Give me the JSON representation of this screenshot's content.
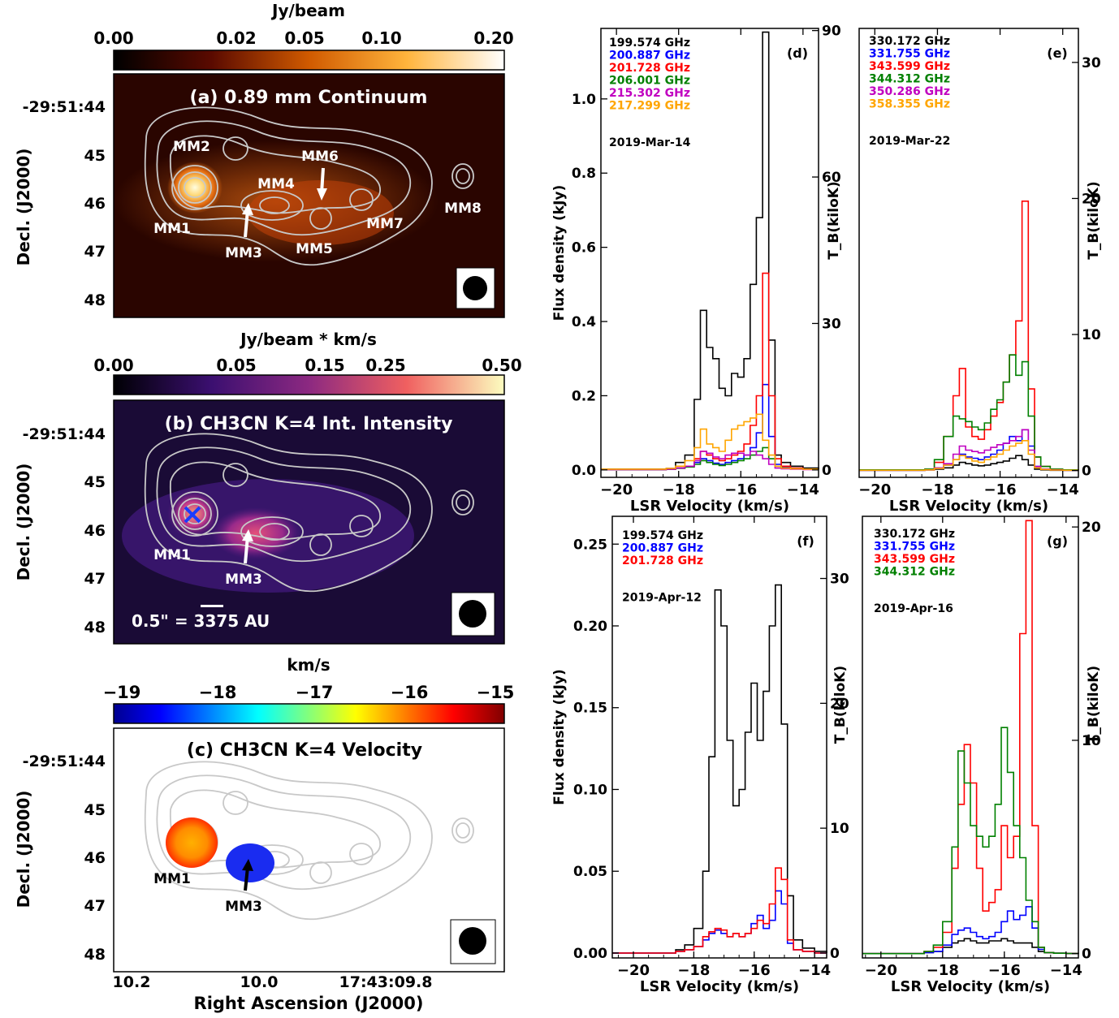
{
  "maps": [
    {
      "id": "a",
      "title": "(a) 0.89 mm Continuum",
      "colorbar": {
        "label": "Jy/beam",
        "ticks": [
          "0.00",
          "0.02",
          "0.05",
          "0.10",
          "0.20"
        ],
        "colormap": "afmhot"
      },
      "labels": [
        "MM1",
        "MM2",
        "MM3",
        "MM4",
        "MM5",
        "MM6",
        "MM7",
        "MM8"
      ],
      "ylabel": "Decl. (J2000)",
      "yticks": [
        "-29:51:44",
        "45",
        "46",
        "47",
        "48"
      ]
    },
    {
      "id": "b",
      "title": "(b) CH3CN K=4 Int. Intensity",
      "colorbar": {
        "label": "Jy/beam * km/s",
        "ticks": [
          "0.00",
          "0.05",
          "0.15",
          "0.25",
          "0.50"
        ],
        "colormap": "magma"
      },
      "labels": [
        "MM1",
        "MM3"
      ],
      "scalebar": "0.5\" = 3375 AU",
      "ylabel": "Decl. (J2000)",
      "yticks": [
        "-29:51:44",
        "45",
        "46",
        "47",
        "48"
      ]
    },
    {
      "id": "c",
      "title": "(c) CH3CN K=4 Velocity",
      "colorbar": {
        "label": "km/s",
        "ticks": [
          "−19",
          "−18",
          "−17",
          "−16",
          "−15"
        ],
        "colormap": "jet"
      },
      "labels": [
        "MM1",
        "MM3"
      ],
      "ylabel": "Decl. (J2000)",
      "yticks": [
        "-29:51:44",
        "45",
        "46",
        "47",
        "48"
      ],
      "xlabel": "Right Ascension (J2000)",
      "xticks": [
        "10.2",
        "10.0",
        "17:43:09.8"
      ]
    }
  ],
  "chart_data": [
    {
      "id": "d",
      "type": "line",
      "panel_label": "(d)",
      "date": "2019-Mar-14",
      "xlabel": "LSR Velocity (km/s)",
      "ylabel": "Flux density (kJy)",
      "y2label": "T_B(kiloK)",
      "xlim": [
        -20.5,
        -13.5
      ],
      "ylim": [
        -0.02,
        1.19
      ],
      "xticks": [
        -20,
        -18,
        -16,
        -14
      ],
      "yticks": [
        0.0,
        0.2,
        0.4,
        0.6,
        0.8,
        1.0
      ],
      "ytick_labels": [
        "0.0",
        "0.2",
        "0.4",
        "0.6",
        "0.8",
        "1.0"
      ],
      "y2ticks": [
        0,
        30,
        60,
        90
      ],
      "y2_per_y": 76,
      "x": [
        -20.5,
        -18.4,
        -18.1,
        -17.8,
        -17.5,
        -17.3,
        -17.1,
        -16.9,
        -16.7,
        -16.5,
        -16.3,
        -16.1,
        -15.9,
        -15.7,
        -15.5,
        -15.3,
        -15.1,
        -14.9,
        -14.7,
        -14.4,
        -14.0,
        -13.5
      ],
      "series": [
        {
          "name": "199.574 GHz",
          "color": "#000000",
          "values": [
            0.002,
            0.004,
            0.02,
            0.04,
            0.19,
            0.43,
            0.33,
            0.3,
            0.22,
            0.2,
            0.26,
            0.25,
            0.3,
            0.5,
            0.68,
            1.18,
            0.35,
            0.04,
            0.02,
            0.01,
            0.005,
            0.002
          ]
        },
        {
          "name": "200.887 GHz",
          "color": "#0000ff",
          "values": [
            0.001,
            0.002,
            0.005,
            0.01,
            0.02,
            0.03,
            0.025,
            0.018,
            0.015,
            0.02,
            0.025,
            0.03,
            0.04,
            0.06,
            0.1,
            0.23,
            0.09,
            0.015,
            0.008,
            0.004,
            0.002,
            0.001
          ]
        },
        {
          "name": "201.728 GHz",
          "color": "#ff0000",
          "values": [
            0.001,
            0.002,
            0.005,
            0.01,
            0.03,
            0.05,
            0.04,
            0.03,
            0.025,
            0.03,
            0.04,
            0.05,
            0.07,
            0.12,
            0.2,
            0.53,
            0.2,
            0.03,
            0.01,
            0.005,
            0.002,
            0.001
          ]
        },
        {
          "name": "206.001 GHz",
          "color": "#008000",
          "values": [
            0.001,
            0.002,
            0.004,
            0.008,
            0.015,
            0.025,
            0.02,
            0.015,
            0.012,
            0.015,
            0.02,
            0.025,
            0.03,
            0.04,
            0.05,
            0.06,
            0.03,
            0.01,
            0.005,
            0.003,
            0.002,
            0.001
          ]
        },
        {
          "name": "215.302 GHz",
          "color": "#c000c0",
          "values": [
            0.001,
            0.002,
            0.005,
            0.01,
            0.025,
            0.05,
            0.045,
            0.035,
            0.03,
            0.04,
            0.045,
            0.045,
            0.04,
            0.05,
            0.04,
            0.03,
            0.015,
            0.005,
            0.003,
            0.002,
            0.001,
            0.001
          ]
        },
        {
          "name": "217.299 GHz",
          "color": "#ffa500",
          "values": [
            0.002,
            0.004,
            0.01,
            0.025,
            0.06,
            0.11,
            0.07,
            0.06,
            0.05,
            0.08,
            0.11,
            0.12,
            0.13,
            0.14,
            0.15,
            0.08,
            0.04,
            0.01,
            0.005,
            0.003,
            0.002,
            0.001
          ]
        }
      ]
    },
    {
      "id": "e",
      "type": "line",
      "panel_label": "(e)",
      "date": "2019-Mar-22",
      "xlabel": "LSR Velocity (km/s)",
      "ylabel": "",
      "y2label": "T_B(kiloK)",
      "xlim": [
        -20.5,
        -13.5
      ],
      "ylim": [
        -0.5,
        32.5
      ],
      "xticks": [
        -20,
        -18,
        -16,
        -14
      ],
      "yticks": [],
      "ytick_labels": [],
      "y2ticks": [
        0,
        10,
        20,
        30
      ],
      "y2_per_y": 1,
      "x": [
        -20.5,
        -18.4,
        -18.1,
        -17.8,
        -17.5,
        -17.3,
        -17.1,
        -16.9,
        -16.7,
        -16.5,
        -16.3,
        -16.1,
        -15.9,
        -15.7,
        -15.5,
        -15.3,
        -15.1,
        -14.9,
        -14.7,
        -14.4,
        -14.0,
        -13.5
      ],
      "series": [
        {
          "name": "330.172 GHz",
          "color": "#000000",
          "values": [
            0.02,
            0.05,
            0.1,
            0.2,
            0.4,
            0.6,
            0.5,
            0.4,
            0.35,
            0.4,
            0.5,
            0.6,
            0.7,
            0.9,
            1.1,
            0.8,
            0.4,
            0.1,
            0.05,
            0.02,
            0.02,
            0.01
          ]
        },
        {
          "name": "331.755 GHz",
          "color": "#0000ff",
          "values": [
            0.02,
            0.05,
            0.15,
            0.4,
            0.8,
            1.2,
            1.0,
            0.9,
            0.8,
            1.0,
            1.2,
            1.5,
            2.0,
            2.5,
            2.2,
            3.0,
            1.8,
            0.3,
            0.1,
            0.05,
            0.02,
            0.01
          ]
        },
        {
          "name": "343.599 GHz",
          "color": "#ff0000",
          "values": [
            0.05,
            0.1,
            0.6,
            2.5,
            5.5,
            7.5,
            3.2,
            2.5,
            2.3,
            3.0,
            4.0,
            5.0,
            6.5,
            8.5,
            11.0,
            19.8,
            6.0,
            1.0,
            0.3,
            0.1,
            0.05,
            0.02
          ]
        },
        {
          "name": "344.312 GHz",
          "color": "#008000",
          "values": [
            0.05,
            0.1,
            0.8,
            2.5,
            4.0,
            3.8,
            3.6,
            3.2,
            3.0,
            3.5,
            4.5,
            5.2,
            6.5,
            8.5,
            7.0,
            8.0,
            4.0,
            1.0,
            0.3,
            0.1,
            0.05,
            0.02
          ]
        },
        {
          "name": "350.286 GHz",
          "color": "#c000c0",
          "values": [
            0.02,
            0.05,
            0.2,
            0.5,
            1.2,
            1.8,
            1.5,
            1.4,
            1.3,
            1.5,
            1.7,
            1.9,
            2.0,
            2.2,
            2.5,
            3.0,
            1.5,
            0.3,
            0.1,
            0.05,
            0.02,
            0.01
          ]
        },
        {
          "name": "358.355 GHz",
          "color": "#ffa500",
          "values": [
            0.02,
            0.05,
            0.15,
            0.4,
            0.8,
            1.1,
            0.9,
            0.7,
            0.6,
            0.8,
            1.0,
            1.2,
            1.5,
            1.8,
            2.0,
            2.2,
            1.2,
            0.2,
            0.08,
            0.04,
            0.02,
            0.01
          ]
        }
      ]
    },
    {
      "id": "f",
      "type": "line",
      "panel_label": "(f)",
      "date": "2019-Apr-12",
      "xlabel": "LSR Velocity (km/s)",
      "ylabel": "Flux density (kJy)",
      "y2label": "T_B(kiloK)",
      "xlim": [
        -20.7,
        -13.6
      ],
      "ylim": [
        -0.003,
        0.267
      ],
      "xticks": [
        -20,
        -18,
        -16,
        -14
      ],
      "yticks": [
        0.0,
        0.05,
        0.1,
        0.15,
        0.2,
        0.25
      ],
      "ytick_labels": [
        "0.00",
        "0.05",
        "0.10",
        "0.15",
        "0.20",
        "0.25"
      ],
      "y2ticks": [
        0,
        10,
        20,
        30
      ],
      "y2_per_y": 131,
      "x": [
        -20.7,
        -18.6,
        -18.3,
        -18.0,
        -17.7,
        -17.5,
        -17.3,
        -17.1,
        -16.9,
        -16.7,
        -16.5,
        -16.3,
        -16.1,
        -15.9,
        -15.7,
        -15.5,
        -15.3,
        -15.1,
        -14.9,
        -14.7,
        -14.4,
        -14.0,
        -13.6
      ],
      "series": [
        {
          "name": "199.574 GHz",
          "color": "#000000",
          "values": [
            0.0,
            0.002,
            0.005,
            0.015,
            0.05,
            0.12,
            0.222,
            0.2,
            0.13,
            0.09,
            0.1,
            0.135,
            0.165,
            0.13,
            0.16,
            0.2,
            0.225,
            0.14,
            0.035,
            0.008,
            0.003,
            0.001,
            0.0
          ]
        },
        {
          "name": "200.887 GHz",
          "color": "#0000ff",
          "values": [
            0.0,
            0.001,
            0.002,
            0.004,
            0.008,
            0.012,
            0.014,
            0.012,
            0.01,
            0.012,
            0.01,
            0.012,
            0.018,
            0.023,
            0.015,
            0.02,
            0.038,
            0.03,
            0.006,
            0.002,
            0.001,
            0.0,
            0.0
          ]
        },
        {
          "name": "201.728 GHz",
          "color": "#ff0000",
          "values": [
            0.0,
            0.001,
            0.002,
            0.004,
            0.01,
            0.013,
            0.015,
            0.014,
            0.01,
            0.012,
            0.01,
            0.012,
            0.015,
            0.02,
            0.018,
            0.03,
            0.052,
            0.045,
            0.008,
            0.002,
            0.001,
            0.0,
            0.0
          ]
        }
      ]
    },
    {
      "id": "g",
      "type": "line",
      "panel_label": "(g)",
      "date": "2019-Apr-16",
      "xlabel": "LSR Velocity (km/s)",
      "ylabel": "",
      "y2label": "T_B(kiloK)",
      "xlim": [
        -20.6,
        -13.6
      ],
      "ylim": [
        -0.2,
        20.5
      ],
      "xticks": [
        -20,
        -18,
        -16,
        -14
      ],
      "yticks": [],
      "ytick_labels": [],
      "y2ticks": [
        0,
        10,
        20
      ],
      "y2_per_y": 1,
      "x": [
        -20.6,
        -18.6,
        -18.3,
        -18.0,
        -17.7,
        -17.5,
        -17.3,
        -17.1,
        -16.9,
        -16.7,
        -16.5,
        -16.3,
        -16.1,
        -15.9,
        -15.7,
        -15.5,
        -15.3,
        -15.1,
        -14.9,
        -14.7,
        -14.4,
        -14.0,
        -13.6
      ],
      "series": [
        {
          "name": "330.172 GHz",
          "color": "#000000",
          "values": [
            0.0,
            0.05,
            0.1,
            0.3,
            0.5,
            0.6,
            0.7,
            0.6,
            0.5,
            0.5,
            0.6,
            0.6,
            0.7,
            0.6,
            0.5,
            0.5,
            0.5,
            0.3,
            0.1,
            0.05,
            0.02,
            0.01,
            0.0
          ]
        },
        {
          "name": "331.755 GHz",
          "color": "#0000ff",
          "values": [
            0.0,
            0.05,
            0.1,
            0.4,
            0.9,
            1.1,
            1.2,
            1.0,
            0.8,
            0.7,
            0.8,
            1.0,
            1.5,
            2.0,
            1.6,
            1.8,
            2.2,
            1.2,
            0.2,
            0.05,
            0.02,
            0.01,
            0.0
          ]
        },
        {
          "name": "343.599 GHz",
          "color": "#ff0000",
          "values": [
            0.0,
            0.1,
            0.3,
            1.0,
            4.0,
            7.0,
            9.8,
            8.0,
            4.0,
            2.0,
            2.4,
            3.0,
            6.0,
            4.5,
            5.5,
            15.0,
            20.3,
            6.0,
            0.3,
            0.05,
            0.02,
            0.01,
            0.0
          ]
        },
        {
          "name": "344.312 GHz",
          "color": "#008000",
          "values": [
            0.0,
            0.1,
            0.4,
            1.5,
            5.0,
            9.5,
            8.0,
            6.0,
            5.5,
            5.0,
            5.5,
            7.0,
            10.6,
            8.5,
            6.0,
            4.5,
            2.5,
            1.5,
            0.3,
            0.05,
            0.02,
            0.01,
            0.0
          ]
        }
      ]
    }
  ]
}
